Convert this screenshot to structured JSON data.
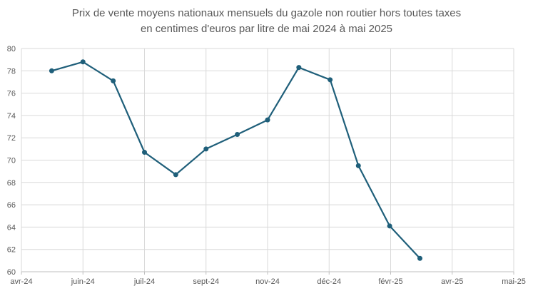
{
  "chart_data": {
    "type": "line",
    "title_line1": "Prix de vente moyens nationaux mensuels du gazole non routier hors toutes taxes",
    "title_line2": "en centimes d'euros par litre de mai 2024 à mai 2025",
    "xlabel": "",
    "ylabel": "",
    "ylim": [
      60,
      80
    ],
    "yticks": [
      60,
      62,
      64,
      66,
      68,
      70,
      72,
      74,
      76,
      78,
      80
    ],
    "xticks": [
      "avr-24",
      "juin-24",
      "juil-24",
      "sept-24",
      "nov-24",
      "déc-24",
      "févr-25",
      "avr-25",
      "mai-25"
    ],
    "grid": true,
    "legend": "none",
    "series": [
      {
        "color": "#1f5f7a",
        "points": [
          {
            "x": "2024-05",
            "y": 78.0
          },
          {
            "x": "2024-06",
            "y": 78.8
          },
          {
            "x": "2024-07",
            "y": 77.1
          },
          {
            "x": "2024-08",
            "y": 70.7
          },
          {
            "x": "2024-09",
            "y": 68.7
          },
          {
            "x": "2024-10",
            "y": 71.0
          },
          {
            "x": "2024-11",
            "y": 72.3
          },
          {
            "x": "2024-12",
            "y": 73.6
          },
          {
            "x": "2025-01",
            "y": 78.3
          },
          {
            "x": "2025-02",
            "y": 77.2
          },
          {
            "x": "2025-03",
            "y": 69.5
          },
          {
            "x": "2025-04",
            "y": 64.1
          },
          {
            "x": "2025-05",
            "y": 61.2
          }
        ]
      }
    ]
  }
}
